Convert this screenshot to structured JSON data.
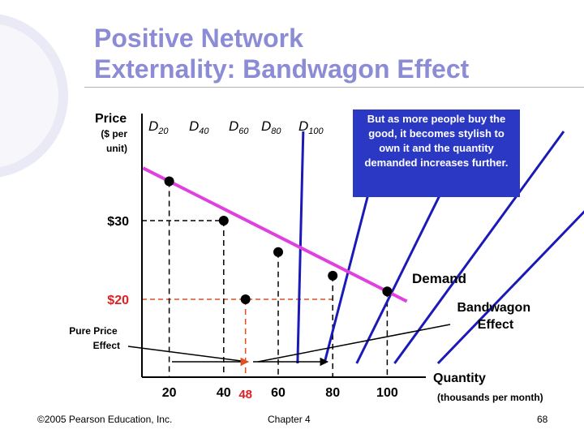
{
  "slide": {
    "title_line1": "Positive Network",
    "title_line2": "Externality: Bandwagon Effect",
    "callout": "But as more people buy the good, it becomes stylish to own it and the quantity demanded increases further.",
    "footer": {
      "copyright": "©2005 Pearson Education, Inc.",
      "chapter": "Chapter 4",
      "page": "68"
    }
  },
  "colors": {
    "title": "#8c8cd6",
    "demand_curves": "#1a1ab8",
    "market_demand": "#e040e0",
    "price_lines": "#e05020",
    "callout_bg": "#2b38c4",
    "axis": "#000000"
  },
  "chart_data": {
    "type": "line",
    "ylabel": "Price",
    "ylabel_unit": "($ per unit)",
    "xlabel": "Quantity",
    "xlabel_unit": "(thousands per month)",
    "price_labels": [
      {
        "price": 30,
        "label": "$30",
        "color": "black"
      },
      {
        "price": 20,
        "label": "$20",
        "color": "red"
      }
    ],
    "x_ticks": [
      {
        "x": 20,
        "label": "20",
        "color": "black"
      },
      {
        "x": 40,
        "label": "40",
        "color": "black"
      },
      {
        "x": 48,
        "label": "48",
        "color": "red"
      },
      {
        "x": 60,
        "label": "60",
        "color": "black"
      },
      {
        "x": 80,
        "label": "80",
        "color": "black"
      },
      {
        "x": 100,
        "label": "100",
        "color": "black"
      }
    ],
    "demand_curves": [
      {
        "sub": "20"
      },
      {
        "sub": "40"
      },
      {
        "sub": "60"
      },
      {
        "sub": "80"
      },
      {
        "sub": "100"
      }
    ],
    "demand_letter": "D",
    "market_demand": {
      "name": "Demand",
      "points": [
        {
          "x": 20,
          "price": 35
        },
        {
          "x": 40,
          "price": 30
        },
        {
          "x": 60,
          "price": 26
        },
        {
          "x": 80,
          "price": 23
        },
        {
          "x": 100,
          "price": 21
        }
      ]
    },
    "price_effect_point": {
      "x": 48,
      "price": 20
    },
    "annotations": {
      "bandwagon_effect": "Bandwagon Effect",
      "pure_price_effect": "Pure Price Effect"
    }
  }
}
